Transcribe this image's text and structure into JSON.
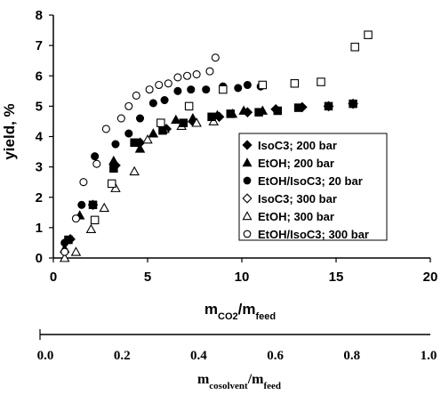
{
  "chart_data": [
    {
      "type": "scatter",
      "title": "",
      "xlabel_main": "m",
      "xlabel_main_sub1": "CO2",
      "xlabel_main_sep": "/m",
      "xlabel_main_sub2": "feed",
      "ylabel": "yield, %",
      "xlim": [
        0,
        20
      ],
      "ylim": [
        0,
        8
      ],
      "xticks": [
        "0",
        "5",
        "10",
        "15",
        "20"
      ],
      "yticks": [
        "0",
        "1",
        "2",
        "3",
        "4",
        "5",
        "6",
        "7",
        "8"
      ],
      "grid": false,
      "legend_position": "center-right",
      "series": [
        {
          "name": "IsoC3; 200 bar",
          "marker": "diamond",
          "filled": true,
          "points": [
            [
              0.9,
              0.62
            ],
            [
              2.1,
              1.75
            ],
            [
              3.3,
              3.05
            ],
            [
              4.6,
              3.8
            ],
            [
              6.0,
              4.25
            ],
            [
              7.4,
              4.5
            ],
            [
              8.8,
              4.65
            ],
            [
              10.3,
              4.8
            ],
            [
              11.8,
              4.9
            ],
            [
              13.2,
              4.97
            ],
            [
              14.6,
              5.0
            ],
            [
              15.9,
              5.08
            ]
          ]
        },
        {
          "name": "EtOH; 200 bar",
          "marker": "triangle",
          "filled": true,
          "points": [
            [
              0.6,
              0.3
            ],
            [
              1.4,
              1.4
            ],
            [
              3.2,
              3.2
            ],
            [
              4.6,
              3.6
            ],
            [
              5.3,
              4.1
            ],
            [
              6.5,
              4.55
            ],
            [
              7.4,
              4.6
            ],
            [
              8.7,
              4.7
            ],
            [
              9.5,
              4.75
            ],
            [
              10.1,
              4.85
            ],
            [
              11.1,
              4.85
            ]
          ]
        },
        {
          "name": "EtOH/IsoC3; 20 bar",
          "marker": "circle",
          "filled": true,
          "points": [
            [
              0.6,
              0.5
            ],
            [
              1.5,
              1.75
            ],
            [
              2.2,
              3.35
            ],
            [
              3.3,
              3.75
            ],
            [
              4.0,
              4.1
            ],
            [
              4.6,
              4.6
            ],
            [
              5.3,
              5.1
            ],
            [
              5.9,
              5.2
            ],
            [
              6.6,
              5.5
            ],
            [
              7.3,
              5.55
            ],
            [
              8.1,
              5.55
            ],
            [
              9.0,
              5.65
            ],
            [
              9.8,
              5.6
            ],
            [
              10.3,
              5.7
            ],
            [
              11.0,
              5.65
            ]
          ]
        },
        {
          "name": "IsoC3; 300 bar",
          "marker": "diamond",
          "filled": false,
          "points": []
        },
        {
          "name": "EtOH; 300 bar",
          "marker": "triangle",
          "filled": false,
          "points": [
            [
              0.6,
              0.0
            ],
            [
              1.2,
              0.2
            ],
            [
              2.0,
              0.95
            ],
            [
              2.7,
              1.65
            ],
            [
              3.3,
              2.3
            ],
            [
              4.3,
              2.85
            ],
            [
              5.0,
              3.9
            ],
            [
              5.9,
              4.25
            ],
            [
              6.8,
              4.35
            ],
            [
              7.6,
              4.45
            ],
            [
              8.5,
              4.5
            ]
          ]
        },
        {
          "name": "EtOH/IsoC3; 300 bar",
          "marker": "circle",
          "filled": false,
          "points": [
            [
              0.6,
              0.2
            ],
            [
              1.2,
              1.3
            ],
            [
              1.6,
              2.5
            ],
            [
              2.3,
              3.1
            ],
            [
              2.8,
              4.25
            ],
            [
              3.6,
              4.6
            ],
            [
              4.0,
              5.0
            ],
            [
              4.4,
              5.35
            ],
            [
              5.1,
              5.55
            ],
            [
              5.6,
              5.7
            ],
            [
              6.1,
              5.75
            ],
            [
              6.6,
              5.95
            ],
            [
              7.1,
              6.0
            ],
            [
              7.6,
              6.05
            ],
            [
              8.3,
              6.15
            ],
            [
              8.6,
              6.6
            ]
          ]
        },
        {
          "name": "",
          "marker": "square",
          "filled": true,
          "points": [
            [
              0.8,
              0.6
            ],
            [
              2.1,
              1.75
            ],
            [
              3.2,
              2.95
            ],
            [
              4.3,
              3.8
            ],
            [
              5.8,
              4.2
            ],
            [
              6.9,
              4.45
            ],
            [
              8.4,
              4.65
            ],
            [
              9.4,
              4.75
            ],
            [
              10.9,
              4.8
            ],
            [
              11.9,
              4.85
            ],
            [
              13.0,
              4.95
            ],
            [
              14.6,
              5.0
            ],
            [
              15.9,
              5.08
            ]
          ]
        },
        {
          "name": "",
          "marker": "square",
          "filled": false,
          "points": [
            [
              2.2,
              1.25
            ],
            [
              3.1,
              2.45
            ],
            [
              5.7,
              4.45
            ],
            [
              7.2,
              5.0
            ],
            [
              9.0,
              5.55
            ],
            [
              11.1,
              5.7
            ],
            [
              12.8,
              5.75
            ],
            [
              14.2,
              5.8
            ],
            [
              16.0,
              6.95
            ],
            [
              16.7,
              7.35
            ]
          ]
        }
      ]
    },
    {
      "type": "axis",
      "xlabel_main": "m",
      "xlabel_main_sub1": "cosolvent",
      "xlabel_main_sep": "/m",
      "xlabel_main_sub2": "feed",
      "xlim": [
        0,
        1.0
      ],
      "xticks": [
        "0.0",
        "0.2",
        "0.4",
        "0.6",
        "0.8",
        "1.0"
      ]
    }
  ],
  "colors": {
    "ink": "#000000",
    "background": "#ffffff"
  }
}
